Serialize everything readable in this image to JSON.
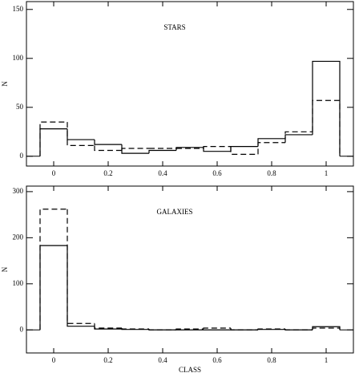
{
  "chart_data": [
    {
      "type": "histogram",
      "title": "STARS",
      "ylabel": "N",
      "bins": [
        -0.05,
        0.05,
        0.15,
        0.25,
        0.35,
        0.45,
        0.55,
        0.65,
        0.75,
        0.85,
        0.95,
        1.05
      ],
      "series": [
        {
          "color": "#000000",
          "linestyle": "solid",
          "values": [
            28,
            17,
            12,
            3,
            6,
            9,
            5,
            10,
            18,
            22,
            97
          ]
        },
        {
          "color": "#000000",
          "linestyle": "dashed",
          "values": [
            35,
            11,
            6,
            8,
            8,
            8,
            10,
            2,
            14,
            25,
            57
          ]
        }
      ],
      "xlim": [
        -0.1,
        1.1
      ],
      "xticks": [
        0,
        0.2,
        0.4,
        0.6,
        0.8,
        1
      ],
      "ylim": [
        -10,
        158
      ],
      "yticks": [
        0,
        50,
        100,
        150
      ]
    },
    {
      "type": "histogram",
      "title": "GALAXIES",
      "ylabel": "N",
      "xlabel": "CLASS",
      "bins": [
        -0.05,
        0.05,
        0.15,
        0.25,
        0.35,
        0.45,
        0.55,
        0.65,
        0.75,
        0.85,
        0.95,
        1.05
      ],
      "series": [
        {
          "color": "#000000",
          "linestyle": "solid",
          "values": [
            183,
            8,
            2,
            1,
            0,
            0,
            0,
            0,
            1,
            0,
            7
          ]
        },
        {
          "color": "#000000",
          "linestyle": "dashed",
          "values": [
            262,
            14,
            4,
            2,
            0,
            2,
            4,
            0,
            2,
            0,
            4
          ]
        }
      ],
      "xlim": [
        -0.1,
        1.1
      ],
      "xticks": [
        0,
        0.2,
        0.4,
        0.6,
        0.8,
        1
      ],
      "ylim": [
        -50,
        312
      ],
      "yticks": [
        0,
        100,
        200,
        300
      ]
    }
  ]
}
